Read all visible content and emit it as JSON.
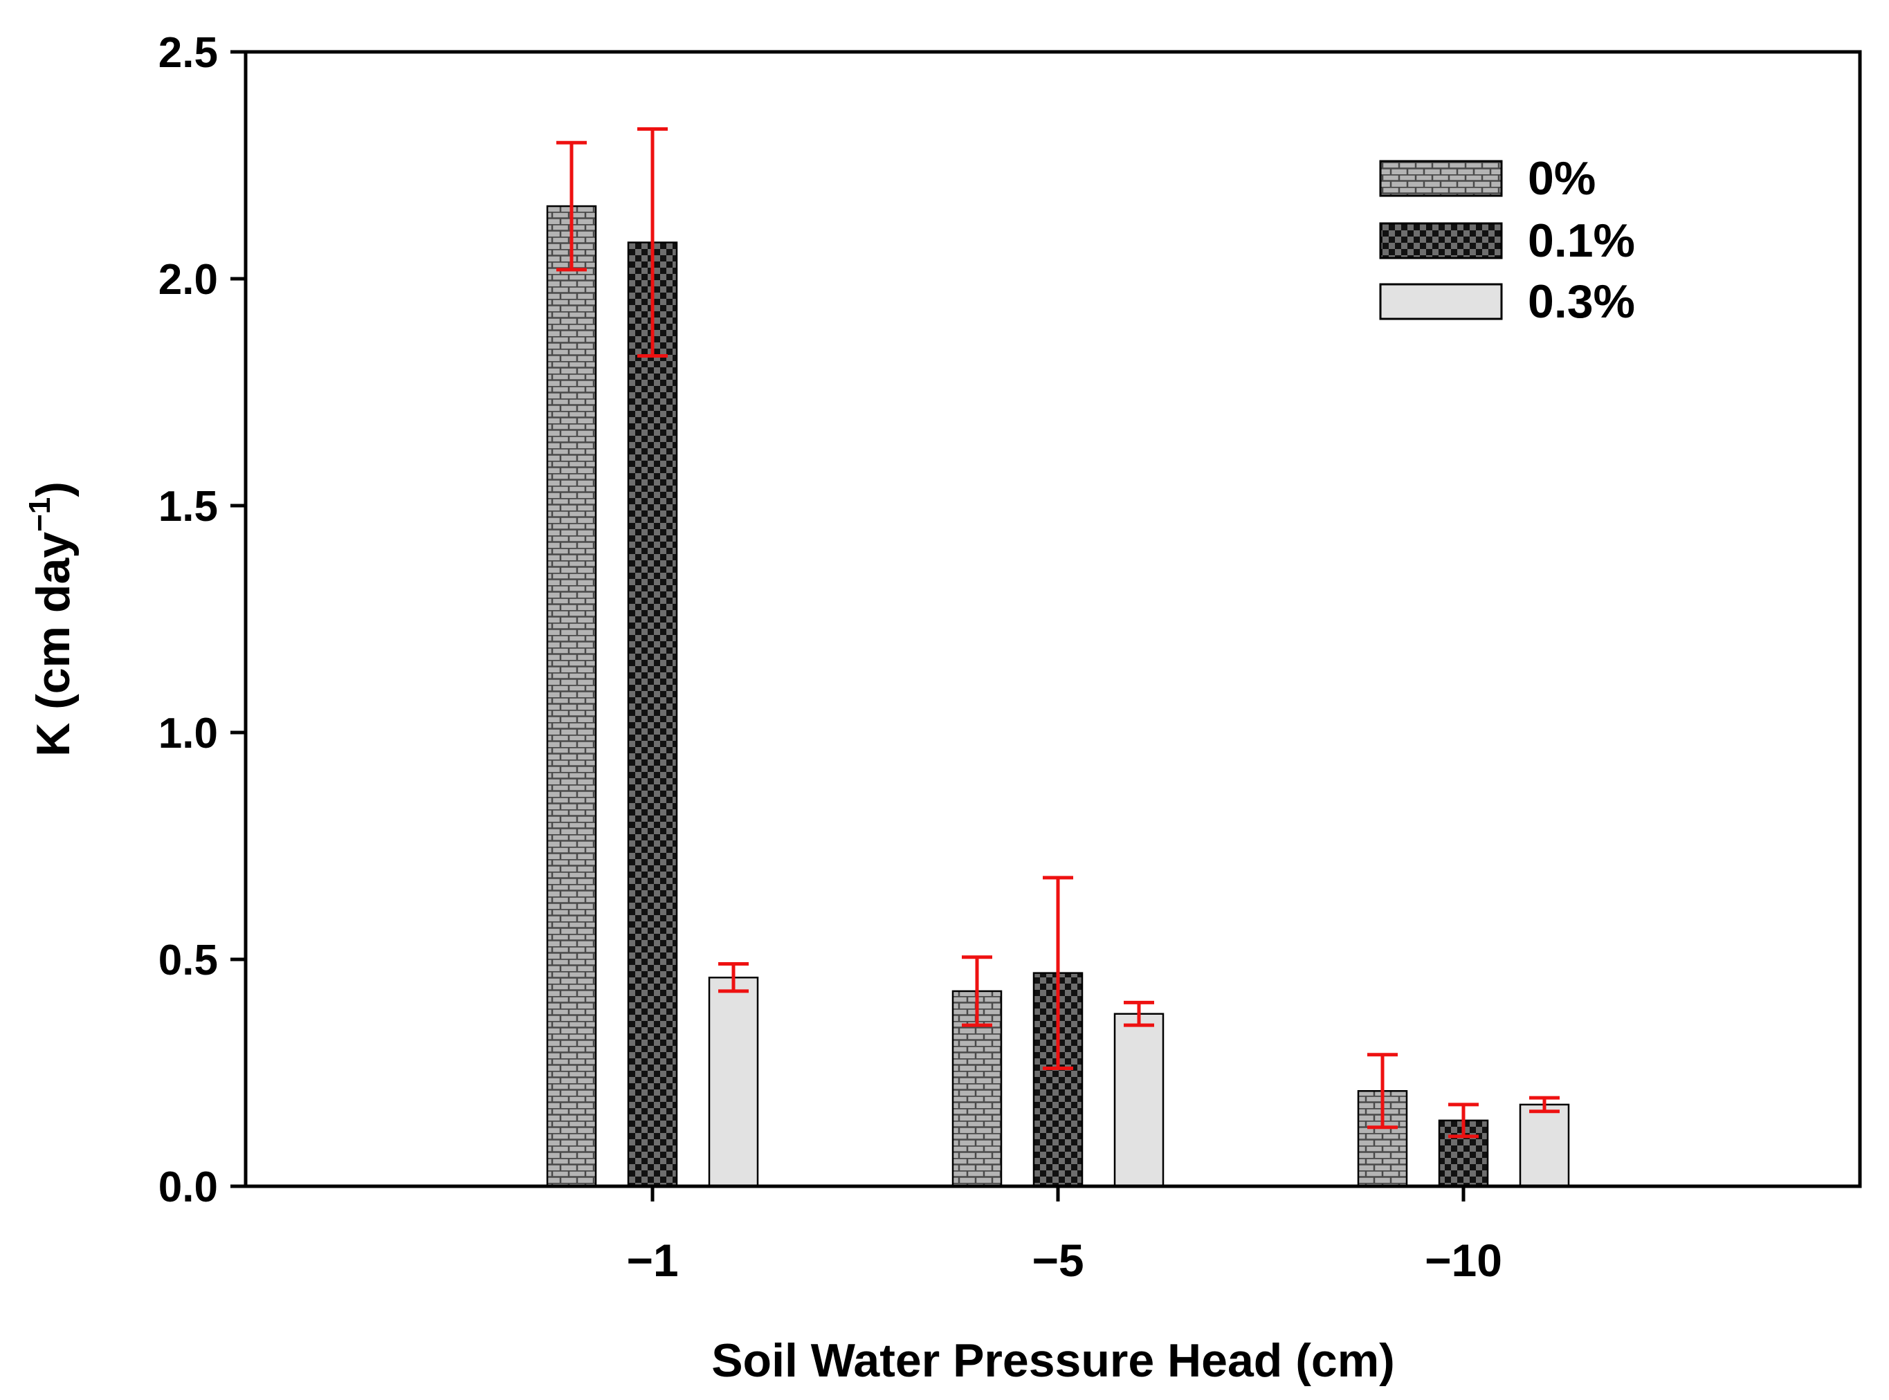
{
  "chart_data": {
    "type": "bar",
    "title": "",
    "xlabel": "Soil Water Pressure Head (cm)",
    "ylabel": "K (cm day",
    "ylabel_sup": "−1",
    "ylabel_close": ")",
    "ylim": [
      0,
      2.5
    ],
    "yticks": [
      0.0,
      0.5,
      1.0,
      1.5,
      2.0,
      2.5
    ],
    "ytick_labels": [
      "0.0",
      "0.5",
      "1.0",
      "1.5",
      "2.0",
      "2.5"
    ],
    "categories": [
      "−1",
      "−5",
      "−10"
    ],
    "legend_position": "top-right",
    "grid": false,
    "error_bar_color": "#ee1111",
    "series": [
      {
        "name": "0%",
        "values": [
          2.16,
          0.43,
          0.21
        ],
        "errors": [
          0.14,
          0.075,
          0.08
        ],
        "pattern": "brick"
      },
      {
        "name": "0.1%",
        "values": [
          2.08,
          0.47,
          0.145
        ],
        "errors": [
          0.25,
          0.21,
          0.035
        ],
        "pattern": "checker"
      },
      {
        "name": "0.3%",
        "values": [
          0.46,
          0.38,
          0.18
        ],
        "errors": [
          0.03,
          0.025,
          0.015
        ],
        "pattern": "plain"
      }
    ]
  }
}
